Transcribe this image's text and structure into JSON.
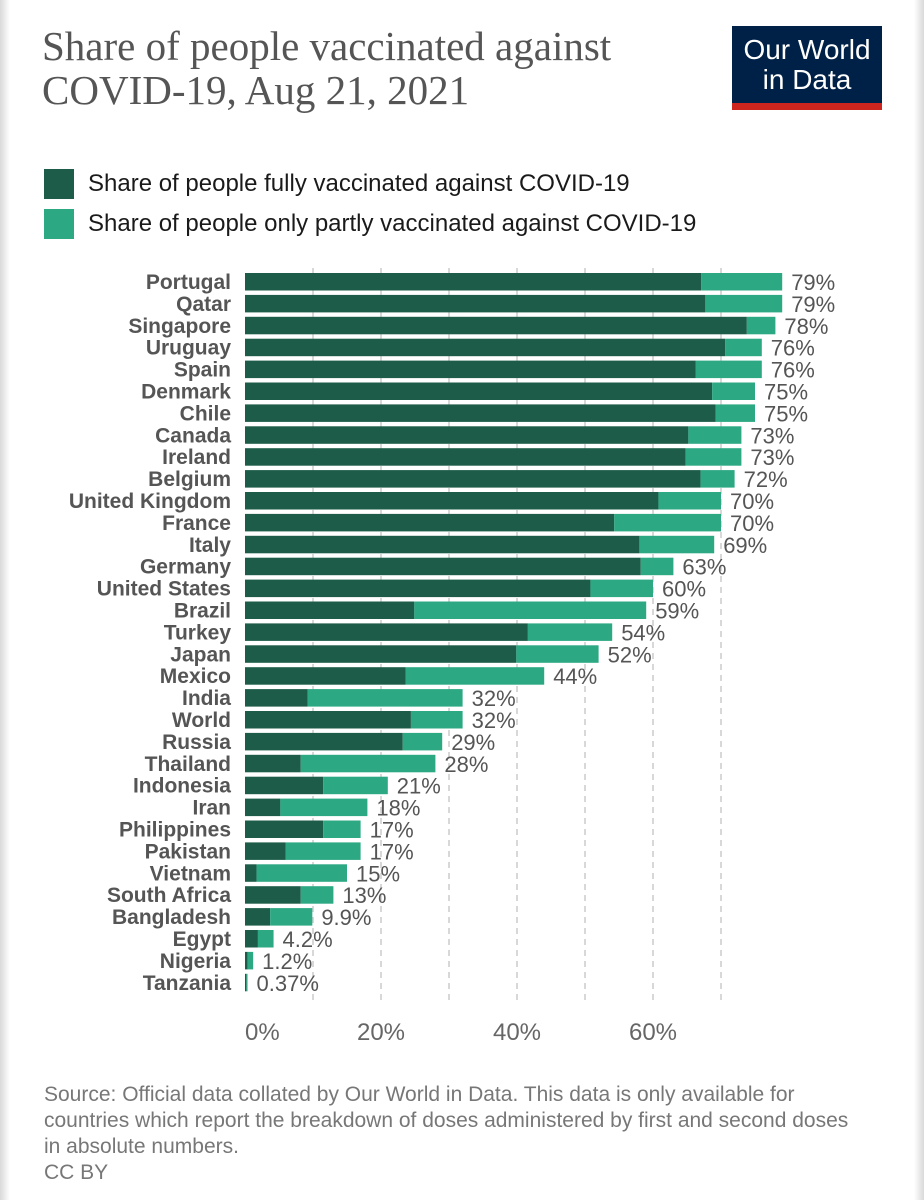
{
  "title": "Share of people vaccinated against COVID-19, Aug 21, 2021",
  "logo": {
    "line1": "Our World",
    "line2": "in Data"
  },
  "colors": {
    "fully": "#1d5c48",
    "partly": "#2ca883",
    "grid": "#cccccc",
    "logo_bg": "#002147",
    "logo_accent": "#ce261e"
  },
  "legend": [
    {
      "label": "Share of people fully vaccinated against COVID-19",
      "color": "#1d5c48"
    },
    {
      "label": "Share of people only partly vaccinated against COVID-19",
      "color": "#2ca883"
    }
  ],
  "source": "Source: Official data collated by Our World in Data. This data is only available for countries which report the breakdown of doses administered by first and second doses in absolute numbers.",
  "license": "CC BY",
  "chart_data": {
    "type": "bar",
    "orientation": "horizontal",
    "stacked": true,
    "categories": [
      "Portugal",
      "Qatar",
      "Singapore",
      "Uruguay",
      "Spain",
      "Denmark",
      "Chile",
      "Canada",
      "Ireland",
      "Belgium",
      "United Kingdom",
      "France",
      "Italy",
      "Germany",
      "United States",
      "Brazil",
      "Turkey",
      "Japan",
      "Mexico",
      "India",
      "World",
      "Russia",
      "Thailand",
      "Indonesia",
      "Iran",
      "Philippines",
      "Pakistan",
      "Vietnam",
      "South Africa",
      "Bangladesh",
      "Egypt",
      "Nigeria",
      "Tanzania"
    ],
    "series": [
      {
        "name": "Share of people fully vaccinated against COVID-19",
        "values": [
          67.1,
          67.7,
          73.8,
          70.6,
          66.3,
          68.7,
          69.2,
          65.2,
          64.8,
          67.0,
          60.8,
          54.3,
          58.0,
          58.2,
          50.8,
          24.9,
          41.6,
          39.9,
          23.6,
          9.2,
          24.4,
          23.2,
          8.2,
          11.5,
          5.2,
          11.5,
          6.0,
          1.7,
          8.2,
          3.7,
          1.9,
          0.4,
          0.2
        ]
      },
      {
        "name": "Share of people only partly vaccinated against COVID-19",
        "values": [
          11.9,
          11.3,
          4.2,
          5.4,
          9.7,
          6.3,
          5.8,
          7.8,
          8.2,
          5.0,
          9.2,
          15.7,
          11.0,
          4.8,
          9.2,
          34.1,
          12.4,
          12.1,
          20.4,
          22.8,
          7.6,
          5.8,
          19.8,
          9.5,
          12.8,
          5.5,
          11.0,
          13.3,
          4.8,
          6.2,
          2.3,
          0.8,
          0.17
        ]
      }
    ],
    "totals": [
      "79%",
      "79%",
      "78%",
      "76%",
      "76%",
      "75%",
      "75%",
      "73%",
      "73%",
      "72%",
      "70%",
      "70%",
      "69%",
      "63%",
      "60%",
      "59%",
      "54%",
      "52%",
      "44%",
      "32%",
      "32%",
      "29%",
      "28%",
      "21%",
      "18%",
      "17%",
      "17%",
      "15%",
      "13%",
      "9.9%",
      "4.2%",
      "1.2%",
      "0.37%"
    ],
    "x_ticks": [
      0,
      20,
      40,
      60
    ],
    "x_tick_labels": [
      "0%",
      "20%",
      "40%",
      "60%"
    ],
    "gridlines_at": [
      10,
      20,
      30,
      40,
      50,
      60,
      70
    ],
    "xlim": [
      0,
      80
    ],
    "grid": true,
    "legend_position": "top"
  }
}
